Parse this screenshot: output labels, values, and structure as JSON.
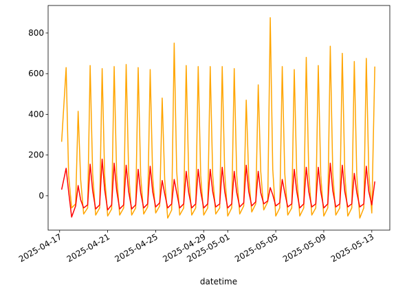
{
  "chart_data": {
    "type": "line",
    "x_label": "datetime",
    "x": [
      "2025-04-17 04:00",
      "2025-04-17 13:00",
      "2025-04-17 18:00",
      "2025-04-18 00:00",
      "2025-04-18 08:00",
      "2025-04-18 13:00",
      "2025-04-18 18:00",
      "2025-04-19 00:00",
      "2025-04-19 08:00",
      "2025-04-19 13:00",
      "2025-04-19 18:00",
      "2025-04-20 00:00",
      "2025-04-20 08:00",
      "2025-04-20 13:00",
      "2025-04-20 18:00",
      "2025-04-21 00:00",
      "2025-04-21 08:00",
      "2025-04-21 13:00",
      "2025-04-21 18:00",
      "2025-04-22 00:00",
      "2025-04-22 08:00",
      "2025-04-22 13:00",
      "2025-04-22 18:00",
      "2025-04-23 00:00",
      "2025-04-23 08:00",
      "2025-04-23 13:00",
      "2025-04-23 18:00",
      "2025-04-24 00:00",
      "2025-04-24 08:00",
      "2025-04-24 13:00",
      "2025-04-24 18:00",
      "2025-04-25 00:00",
      "2025-04-25 08:00",
      "2025-04-25 13:00",
      "2025-04-25 18:00",
      "2025-04-26 00:00",
      "2025-04-26 08:00",
      "2025-04-26 13:00",
      "2025-04-26 18:00",
      "2025-04-27 00:00",
      "2025-04-27 08:00",
      "2025-04-27 13:00",
      "2025-04-27 18:00",
      "2025-04-28 00:00",
      "2025-04-28 08:00",
      "2025-04-28 13:00",
      "2025-04-28 18:00",
      "2025-04-29 00:00",
      "2025-04-29 08:00",
      "2025-04-29 13:00",
      "2025-04-29 18:00",
      "2025-04-30 00:00",
      "2025-04-30 08:00",
      "2025-04-30 13:00",
      "2025-04-30 18:00",
      "2025-05-01 00:00",
      "2025-05-01 08:00",
      "2025-05-01 13:00",
      "2025-05-01 18:00",
      "2025-05-02 00:00",
      "2025-05-02 08:00",
      "2025-05-02 13:00",
      "2025-05-02 18:00",
      "2025-05-03 00:00",
      "2025-05-03 08:00",
      "2025-05-03 13:00",
      "2025-05-03 18:00",
      "2025-05-04 00:00",
      "2025-05-04 08:00",
      "2025-05-04 13:00",
      "2025-05-04 18:00",
      "2025-05-05 00:00",
      "2025-05-05 08:00",
      "2025-05-05 13:00",
      "2025-05-05 18:00",
      "2025-05-06 00:00",
      "2025-05-06 08:00",
      "2025-05-06 13:00",
      "2025-05-06 18:00",
      "2025-05-07 00:00",
      "2025-05-07 08:00",
      "2025-05-07 13:00",
      "2025-05-07 18:00",
      "2025-05-08 00:00",
      "2025-05-08 08:00",
      "2025-05-08 13:00",
      "2025-05-08 18:00",
      "2025-05-09 00:00",
      "2025-05-09 08:00",
      "2025-05-09 13:00",
      "2025-05-09 18:00",
      "2025-05-10 00:00",
      "2025-05-10 08:00",
      "2025-05-10 13:00",
      "2025-05-10 18:00",
      "2025-05-11 00:00",
      "2025-05-11 08:00",
      "2025-05-11 13:00",
      "2025-05-11 18:00",
      "2025-05-12 00:00",
      "2025-05-12 08:00",
      "2025-05-12 13:00",
      "2025-05-12 18:00",
      "2025-05-13 00:00",
      "2025-05-13 06:00"
    ],
    "series": [
      {
        "color": "#ffa500",
        "values": [
          265,
          630,
          100,
          -60,
          -40,
          415,
          80,
          -90,
          -60,
          640,
          110,
          -95,
          -60,
          625,
          100,
          -100,
          -65,
          635,
          100,
          -95,
          -60,
          645,
          110,
          -95,
          -60,
          630,
          100,
          -90,
          -55,
          620,
          90,
          -85,
          -50,
          480,
          80,
          -110,
          -70,
          750,
          120,
          -95,
          -60,
          640,
          100,
          -95,
          -60,
          635,
          100,
          -95,
          -60,
          635,
          100,
          -90,
          -60,
          635,
          110,
          -100,
          -60,
          625,
          100,
          -90,
          -50,
          470,
          90,
          -80,
          -40,
          545,
          120,
          -70,
          -30,
          875,
          130,
          -100,
          -60,
          635,
          110,
          -95,
          -60,
          620,
          100,
          -100,
          -60,
          680,
          110,
          -95,
          -60,
          640,
          100,
          -100,
          -60,
          735,
          110,
          -95,
          -60,
          700,
          110,
          -100,
          -60,
          660,
          100,
          -110,
          -60,
          675,
          110,
          -85,
          635
        ]
      },
      {
        "color": "#ff0000",
        "values": [
          30,
          135,
          20,
          -105,
          -50,
          50,
          -20,
          -60,
          -45,
          155,
          25,
          -65,
          -45,
          180,
          30,
          -70,
          -45,
          160,
          25,
          -65,
          -45,
          150,
          20,
          -65,
          -45,
          130,
          15,
          -60,
          -40,
          145,
          20,
          -55,
          -35,
          75,
          10,
          -60,
          -40,
          80,
          15,
          -60,
          -40,
          120,
          15,
          -60,
          -40,
          130,
          20,
          -60,
          -40,
          130,
          20,
          -55,
          -40,
          140,
          20,
          -60,
          -40,
          120,
          15,
          -55,
          -35,
          150,
          20,
          -50,
          -30,
          120,
          15,
          -40,
          -25,
          40,
          5,
          -50,
          -35,
          80,
          15,
          -55,
          -40,
          130,
          20,
          -60,
          -40,
          140,
          20,
          -55,
          -40,
          140,
          20,
          -60,
          -40,
          160,
          25,
          -55,
          -40,
          150,
          20,
          -55,
          -40,
          110,
          15,
          -55,
          -40,
          145,
          20,
          -45,
          70
        ]
      }
    ],
    "xlim": [
      "2025-04-16 01:00",
      "2025-05-14 12:00"
    ],
    "xticks": [
      "2025-04-17",
      "2025-04-21",
      "2025-04-25",
      "2025-04-29",
      "2025-05-01",
      "2025-05-05",
      "2025-05-09",
      "2025-05-13"
    ],
    "ylim": [
      -169,
      935
    ],
    "yticks": [
      0,
      200,
      400,
      600,
      800
    ]
  }
}
